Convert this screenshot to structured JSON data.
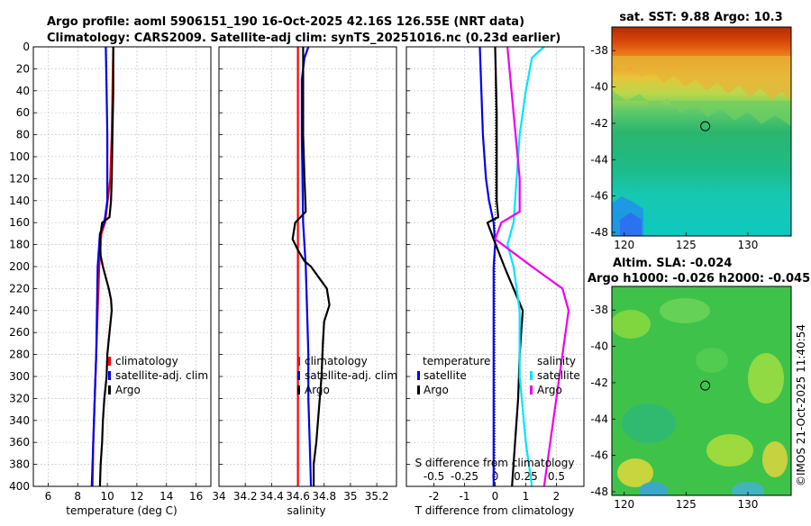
{
  "title_line1": "Argo profile: aoml 5906151_190 16-Oct-2025 42.16S 126.55E (NRT data)",
  "title_line2": "Climatology: CARS2009. Satellite-adj clim: synTS_20251016.nc (0.23d earlier)",
  "copyright": "©IMOS 21-Oct-2025 11:40:54",
  "colors": {
    "climatology": "#ff0000",
    "satellite": "#0000ee",
    "argo": "#000000",
    "sat_salinity": "#00e5ff",
    "argo_salinity": "#ee00ee"
  },
  "chart_data": [
    {
      "type": "line",
      "name": "temperature-panel",
      "xlabel": "temperature (deg C)",
      "xlim": [
        5,
        17
      ],
      "ylim": [
        400,
        0
      ],
      "xticks": [
        "6",
        "8",
        "10",
        "12",
        "14",
        "16"
      ],
      "xtick_values": [
        6,
        8,
        10,
        12,
        14,
        16
      ],
      "yticks": [
        "0",
        "20",
        "40",
        "60",
        "80",
        "100",
        "120",
        "140",
        "160",
        "180",
        "200",
        "220",
        "240",
        "260",
        "280",
        "300",
        "320",
        "340",
        "360",
        "380",
        "400"
      ],
      "ytick_values": [
        0,
        20,
        40,
        60,
        80,
        100,
        120,
        140,
        160,
        180,
        200,
        220,
        240,
        260,
        280,
        300,
        320,
        340,
        360,
        380,
        400
      ],
      "legend": [
        "climatology",
        "satellite-adj. clim",
        "Argo"
      ],
      "series": [
        {
          "name": "climatology",
          "color": "#ff0000",
          "depth": [
            0,
            40,
            80,
            120,
            160,
            170,
            200,
            240,
            280,
            320,
            360,
            400
          ],
          "values": [
            10.4,
            10.35,
            10.3,
            10.2,
            9.85,
            9.6,
            9.45,
            9.35,
            9.25,
            9.15,
            9.05,
            9.0
          ]
        },
        {
          "name": "satellite-adj. clim",
          "color": "#0000ee",
          "depth": [
            0,
            40,
            80,
            120,
            140,
            160,
            170,
            200,
            240,
            280,
            320,
            360,
            400
          ],
          "values": [
            9.9,
            9.95,
            10.0,
            10.0,
            10.0,
            9.8,
            9.5,
            9.35,
            9.3,
            9.25,
            9.15,
            9.05,
            8.95
          ]
        },
        {
          "name": "Argo",
          "color": "#000000",
          "depth": [
            0,
            40,
            80,
            120,
            140,
            155,
            160,
            175,
            190,
            200,
            210,
            220,
            230,
            240,
            260,
            280,
            300,
            320,
            340,
            360,
            380,
            400
          ],
          "values": [
            10.4,
            10.4,
            10.35,
            10.3,
            10.25,
            10.15,
            9.65,
            9.5,
            9.55,
            9.7,
            9.9,
            10.1,
            10.25,
            10.3,
            10.15,
            10.0,
            9.95,
            9.8,
            9.7,
            9.65,
            9.55,
            9.5
          ]
        }
      ]
    },
    {
      "type": "line",
      "name": "salinity-panel",
      "xlabel": "salinity",
      "xlim": [
        34,
        35.35
      ],
      "ylim": [
        400,
        0
      ],
      "xticks": [
        "34",
        "34.2",
        "34.4",
        "34.6",
        "34.8",
        "35",
        "35.2"
      ],
      "xtick_values": [
        34,
        34.2,
        34.4,
        34.6,
        34.8,
        35,
        35.2
      ],
      "legend": [
        "climatology",
        "satellite-adj. clim",
        "Argo"
      ],
      "series": [
        {
          "name": "climatology",
          "color": "#ff0000",
          "depth": [
            0,
            100,
            200,
            300,
            400
          ],
          "values": [
            34.6,
            34.6,
            34.6,
            34.6,
            34.6
          ]
        },
        {
          "name": "satellite-adj. clim",
          "color": "#0000ee",
          "depth": [
            0,
            10,
            30,
            80,
            160,
            200,
            240,
            280,
            320,
            360,
            400
          ],
          "values": [
            34.68,
            34.65,
            34.63,
            34.63,
            34.64,
            34.66,
            34.67,
            34.68,
            34.68,
            34.69,
            34.7
          ]
        },
        {
          "name": "Argo",
          "color": "#000000",
          "depth": [
            0,
            40,
            80,
            120,
            150,
            160,
            175,
            185,
            195,
            200,
            210,
            220,
            235,
            250,
            270,
            300,
            330,
            360,
            380,
            400
          ],
          "values": [
            34.64,
            34.64,
            34.64,
            34.65,
            34.66,
            34.58,
            34.56,
            34.6,
            34.65,
            34.7,
            34.76,
            34.82,
            34.84,
            34.8,
            34.79,
            34.78,
            34.76,
            34.74,
            34.72,
            34.72
          ]
        }
      ]
    },
    {
      "type": "line",
      "name": "difference-panel",
      "xlabel": "T difference from climatology",
      "xlabel_top": "S difference from climatology",
      "xlim": [
        -2.9,
        2.9
      ],
      "ylim": [
        400,
        0
      ],
      "xticks": [
        "-2",
        "-1",
        "0",
        "1",
        "2"
      ],
      "xtick_values": [
        -2,
        -1,
        0,
        1,
        2
      ],
      "s_ticks": [
        "-0.5",
        "-0.25",
        "0",
        "0.25",
        "0.5"
      ],
      "legend_temperature_title": "temperature",
      "legend_salinity_title": "salinity",
      "legend_temperature": [
        "satellite",
        "Argo"
      ],
      "legend_salinity": [
        "satellite",
        "Argo"
      ],
      "series": [
        {
          "name": "temperature satellite",
          "color": "#0000ee",
          "depth": [
            0,
            40,
            80,
            120,
            140,
            160,
            180,
            200,
            240,
            300,
            360,
            400
          ],
          "values": [
            -0.5,
            -0.45,
            -0.4,
            -0.3,
            -0.2,
            -0.05,
            0.0,
            -0.05,
            -0.05,
            -0.05,
            -0.05,
            -0.05
          ]
        },
        {
          "name": "temperature Argo",
          "color": "#000000",
          "depth": [
            0,
            60,
            120,
            140,
            155,
            160,
            175,
            200,
            220,
            240,
            280,
            320,
            360,
            400
          ],
          "values": [
            0.0,
            0.05,
            0.05,
            0.05,
            0.1,
            -0.25,
            -0.05,
            0.3,
            0.6,
            0.9,
            0.8,
            0.75,
            0.65,
            0.55
          ]
        },
        {
          "name": "salinity satellite",
          "color": "#00e5ff",
          "depth": [
            0,
            10,
            40,
            80,
            160,
            180,
            200,
            240,
            300,
            360,
            400
          ],
          "values": [
            0.4,
            0.3,
            0.25,
            0.2,
            0.15,
            0.1,
            0.15,
            0.2,
            0.2,
            0.25,
            0.3
          ]
        },
        {
          "name": "salinity Argo",
          "color": "#ee00ee",
          "depth": [
            0,
            60,
            120,
            150,
            160,
            175,
            200,
            220,
            240,
            280,
            320,
            360,
            400
          ],
          "values": [
            0.1,
            0.15,
            0.2,
            0.2,
            0.05,
            0.0,
            0.3,
            0.55,
            0.6,
            0.55,
            0.5,
            0.45,
            0.4
          ]
        }
      ]
    },
    {
      "type": "heatmap",
      "name": "sst-map",
      "title": "sat. SST: 9.88 Argo: 10.3",
      "xticks": [
        "120",
        "125",
        "130"
      ],
      "xtick_values": [
        120,
        125,
        130
      ],
      "yticks": [
        "-38",
        "-40",
        "-42",
        "-44",
        "-46",
        "-48"
      ],
      "ytick_values": [
        -38,
        -40,
        -42,
        -44,
        -46,
        -48
      ],
      "xlim": [
        119,
        133.5
      ],
      "ylim": [
        -36.7,
        -48.2
      ],
      "marker": {
        "lon": 126.55,
        "lat": -42.16
      }
    },
    {
      "type": "heatmap",
      "name": "sla-map",
      "title_line1": "Altim. SLA: -0.024",
      "title_line2": "Argo h1000: -0.026 h2000: -0.045",
      "xticks": [
        "120",
        "125",
        "130"
      ],
      "xtick_values": [
        120,
        125,
        130
      ],
      "yticks": [
        "-38",
        "-40",
        "-42",
        "-44",
        "-46",
        "-48"
      ],
      "ytick_values": [
        -38,
        -40,
        -42,
        -44,
        -46,
        -48
      ],
      "xlim": [
        119,
        133.5
      ],
      "ylim": [
        -36.7,
        -48.2
      ],
      "marker": {
        "lon": 126.55,
        "lat": -42.16
      }
    }
  ]
}
